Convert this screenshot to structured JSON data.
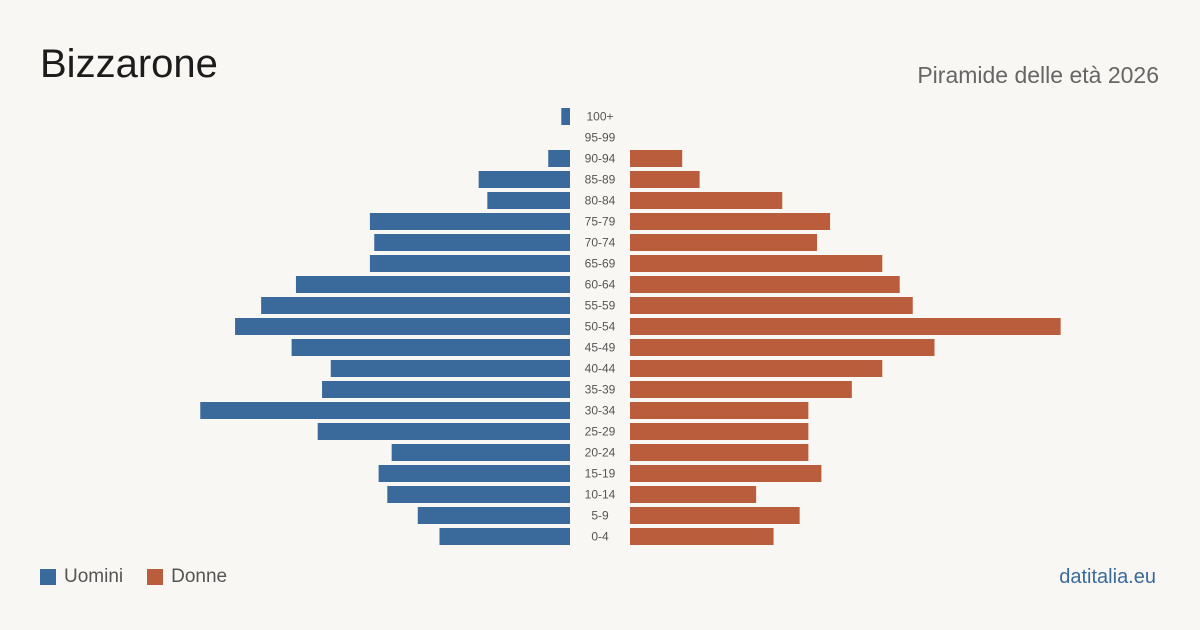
{
  "title": "Bizzarone",
  "subtitle": "Piramide delle età 2026",
  "source": "datitalia.eu",
  "colors": {
    "men": "#3a6a9b",
    "women": "#b95d3d",
    "background": "#f9f7f3"
  },
  "legend": [
    {
      "label": "Uomini",
      "color": "#3a6a9b"
    },
    {
      "label": "Donne",
      "color": "#b95d3d"
    }
  ],
  "chart_data": {
    "type": "bar",
    "orientation": "horizontal-pyramid",
    "categories": [
      "100+",
      "95-99",
      "90-94",
      "85-89",
      "80-84",
      "75-79",
      "70-74",
      "65-69",
      "60-64",
      "55-59",
      "50-54",
      "45-49",
      "40-44",
      "35-39",
      "30-34",
      "25-29",
      "20-24",
      "15-19",
      "10-14",
      "5-9",
      "0-4"
    ],
    "series": [
      {
        "name": "Uomini",
        "values": [
          2,
          0,
          5,
          21,
          19,
          46,
          45,
          46,
          63,
          71,
          77,
          64,
          55,
          57,
          85,
          58,
          41,
          44,
          42,
          35,
          30
        ]
      },
      {
        "name": "Donne",
        "values": [
          0,
          0,
          12,
          16,
          35,
          46,
          43,
          58,
          62,
          65,
          99,
          70,
          58,
          51,
          41,
          41,
          41,
          44,
          29,
          39,
          33
        ]
      }
    ]
  }
}
